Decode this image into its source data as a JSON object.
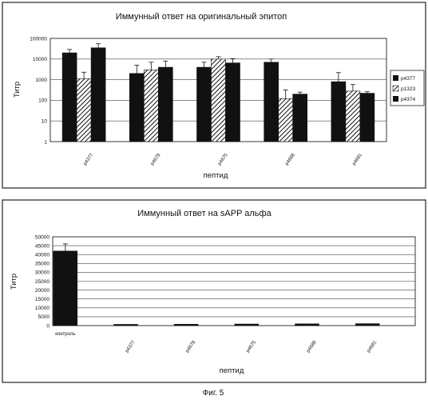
{
  "caption": "Фиг. 5",
  "chart_data": [
    {
      "type": "bar",
      "title": "Иммунный ответ на оригинальный эпитоп",
      "xlabel": "пептид",
      "ylabel": "Титр",
      "yscale": "log",
      "ylim": [
        1,
        100000
      ],
      "yticks": [
        "1",
        "10",
        "100",
        "1000",
        "10000",
        "100000"
      ],
      "grid": true,
      "legend": "right",
      "categories": [
        "p4377",
        "p4678",
        "p4675",
        "p4688",
        "p4681"
      ],
      "series": [
        {
          "name": "p4377",
          "pattern": "solid",
          "values": [
            20000,
            2000,
            4000,
            7000,
            800
          ],
          "errors": [
            9000,
            3000,
            3000,
            3000,
            1400
          ]
        },
        {
          "name": "p1323",
          "pattern": "hatched",
          "values": [
            1100,
            3000,
            10000,
            120,
            280
          ],
          "errors": [
            1200,
            4000,
            3000,
            200,
            300
          ]
        },
        {
          "name": "p4374",
          "pattern": "solid",
          "values": [
            35000,
            4000,
            6500,
            200,
            220
          ],
          "errors": [
            20000,
            4000,
            4000,
            50,
            40
          ]
        }
      ]
    },
    {
      "type": "bar",
      "title": "Иммунный ответ на  sAPP альфа",
      "xlabel": "пептид",
      "ylabel": "Титр",
      "ylim": [
        0,
        50000
      ],
      "yticks": [
        "0",
        "5000",
        "10000",
        "15000",
        "20000",
        "25000",
        "30000",
        "35000",
        "40000",
        "45000",
        "50000"
      ],
      "grid": true,
      "categories": [
        "контроль",
        "p4377",
        "p4678",
        "p4675",
        "p4688",
        "p4681"
      ],
      "values": [
        42000,
        700,
        800,
        900,
        1000,
        1100
      ],
      "errors": [
        4000,
        0,
        0,
        0,
        0,
        0
      ]
    }
  ]
}
